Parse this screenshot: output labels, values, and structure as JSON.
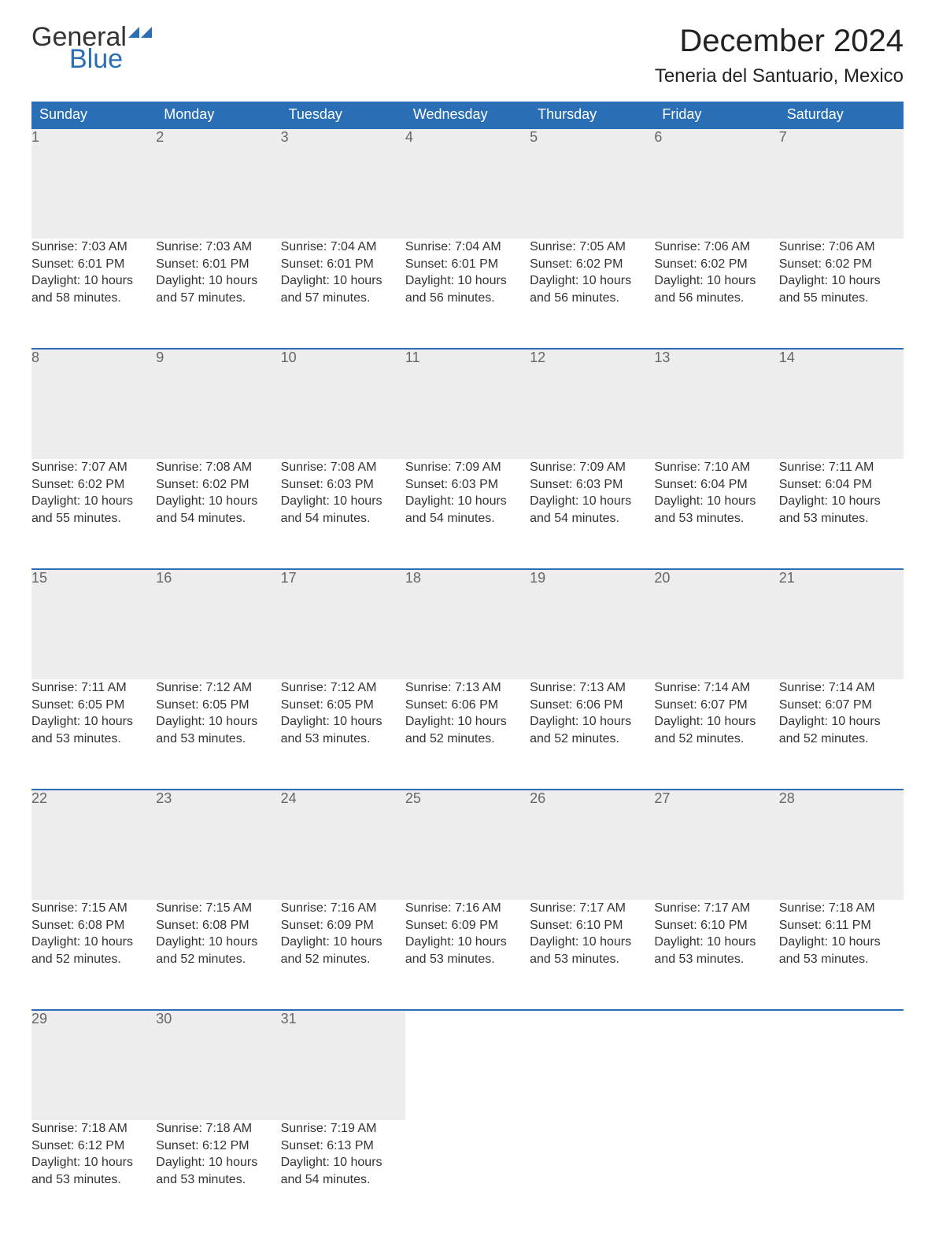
{
  "logo": {
    "word1": "General",
    "word2": "Blue",
    "flag_color": "#2a6fb5"
  },
  "title": "December 2024",
  "location": "Teneria del Santuario, Mexico",
  "header_bg": "#2a6fb5",
  "header_text": "#ffffff",
  "daynum_bg": "#ededed",
  "daynum_text": "#666666",
  "rule_color": "#2a6fb5",
  "weekdays": [
    "Sunday",
    "Monday",
    "Tuesday",
    "Wednesday",
    "Thursday",
    "Friday",
    "Saturday"
  ],
  "weeks": [
    [
      {
        "n": "1",
        "sr": "7:03 AM",
        "ss": "6:01 PM",
        "dl": "10 hours and 58 minutes."
      },
      {
        "n": "2",
        "sr": "7:03 AM",
        "ss": "6:01 PM",
        "dl": "10 hours and 57 minutes."
      },
      {
        "n": "3",
        "sr": "7:04 AM",
        "ss": "6:01 PM",
        "dl": "10 hours and 57 minutes."
      },
      {
        "n": "4",
        "sr": "7:04 AM",
        "ss": "6:01 PM",
        "dl": "10 hours and 56 minutes."
      },
      {
        "n": "5",
        "sr": "7:05 AM",
        "ss": "6:02 PM",
        "dl": "10 hours and 56 minutes."
      },
      {
        "n": "6",
        "sr": "7:06 AM",
        "ss": "6:02 PM",
        "dl": "10 hours and 56 minutes."
      },
      {
        "n": "7",
        "sr": "7:06 AM",
        "ss": "6:02 PM",
        "dl": "10 hours and 55 minutes."
      }
    ],
    [
      {
        "n": "8",
        "sr": "7:07 AM",
        "ss": "6:02 PM",
        "dl": "10 hours and 55 minutes."
      },
      {
        "n": "9",
        "sr": "7:08 AM",
        "ss": "6:02 PM",
        "dl": "10 hours and 54 minutes."
      },
      {
        "n": "10",
        "sr": "7:08 AM",
        "ss": "6:03 PM",
        "dl": "10 hours and 54 minutes."
      },
      {
        "n": "11",
        "sr": "7:09 AM",
        "ss": "6:03 PM",
        "dl": "10 hours and 54 minutes."
      },
      {
        "n": "12",
        "sr": "7:09 AM",
        "ss": "6:03 PM",
        "dl": "10 hours and 54 minutes."
      },
      {
        "n": "13",
        "sr": "7:10 AM",
        "ss": "6:04 PM",
        "dl": "10 hours and 53 minutes."
      },
      {
        "n": "14",
        "sr": "7:11 AM",
        "ss": "6:04 PM",
        "dl": "10 hours and 53 minutes."
      }
    ],
    [
      {
        "n": "15",
        "sr": "7:11 AM",
        "ss": "6:05 PM",
        "dl": "10 hours and 53 minutes."
      },
      {
        "n": "16",
        "sr": "7:12 AM",
        "ss": "6:05 PM",
        "dl": "10 hours and 53 minutes."
      },
      {
        "n": "17",
        "sr": "7:12 AM",
        "ss": "6:05 PM",
        "dl": "10 hours and 53 minutes."
      },
      {
        "n": "18",
        "sr": "7:13 AM",
        "ss": "6:06 PM",
        "dl": "10 hours and 52 minutes."
      },
      {
        "n": "19",
        "sr": "7:13 AM",
        "ss": "6:06 PM",
        "dl": "10 hours and 52 minutes."
      },
      {
        "n": "20",
        "sr": "7:14 AM",
        "ss": "6:07 PM",
        "dl": "10 hours and 52 minutes."
      },
      {
        "n": "21",
        "sr": "7:14 AM",
        "ss": "6:07 PM",
        "dl": "10 hours and 52 minutes."
      }
    ],
    [
      {
        "n": "22",
        "sr": "7:15 AM",
        "ss": "6:08 PM",
        "dl": "10 hours and 52 minutes."
      },
      {
        "n": "23",
        "sr": "7:15 AM",
        "ss": "6:08 PM",
        "dl": "10 hours and 52 minutes."
      },
      {
        "n": "24",
        "sr": "7:16 AM",
        "ss": "6:09 PM",
        "dl": "10 hours and 52 minutes."
      },
      {
        "n": "25",
        "sr": "7:16 AM",
        "ss": "6:09 PM",
        "dl": "10 hours and 53 minutes."
      },
      {
        "n": "26",
        "sr": "7:17 AM",
        "ss": "6:10 PM",
        "dl": "10 hours and 53 minutes."
      },
      {
        "n": "27",
        "sr": "7:17 AM",
        "ss": "6:10 PM",
        "dl": "10 hours and 53 minutes."
      },
      {
        "n": "28",
        "sr": "7:18 AM",
        "ss": "6:11 PM",
        "dl": "10 hours and 53 minutes."
      }
    ],
    [
      {
        "n": "29",
        "sr": "7:18 AM",
        "ss": "6:12 PM",
        "dl": "10 hours and 53 minutes."
      },
      {
        "n": "30",
        "sr": "7:18 AM",
        "ss": "6:12 PM",
        "dl": "10 hours and 53 minutes."
      },
      {
        "n": "31",
        "sr": "7:19 AM",
        "ss": "6:13 PM",
        "dl": "10 hours and 54 minutes."
      },
      null,
      null,
      null,
      null
    ]
  ],
  "labels": {
    "sunrise": "Sunrise: ",
    "sunset": "Sunset: ",
    "daylight": "Daylight: "
  }
}
